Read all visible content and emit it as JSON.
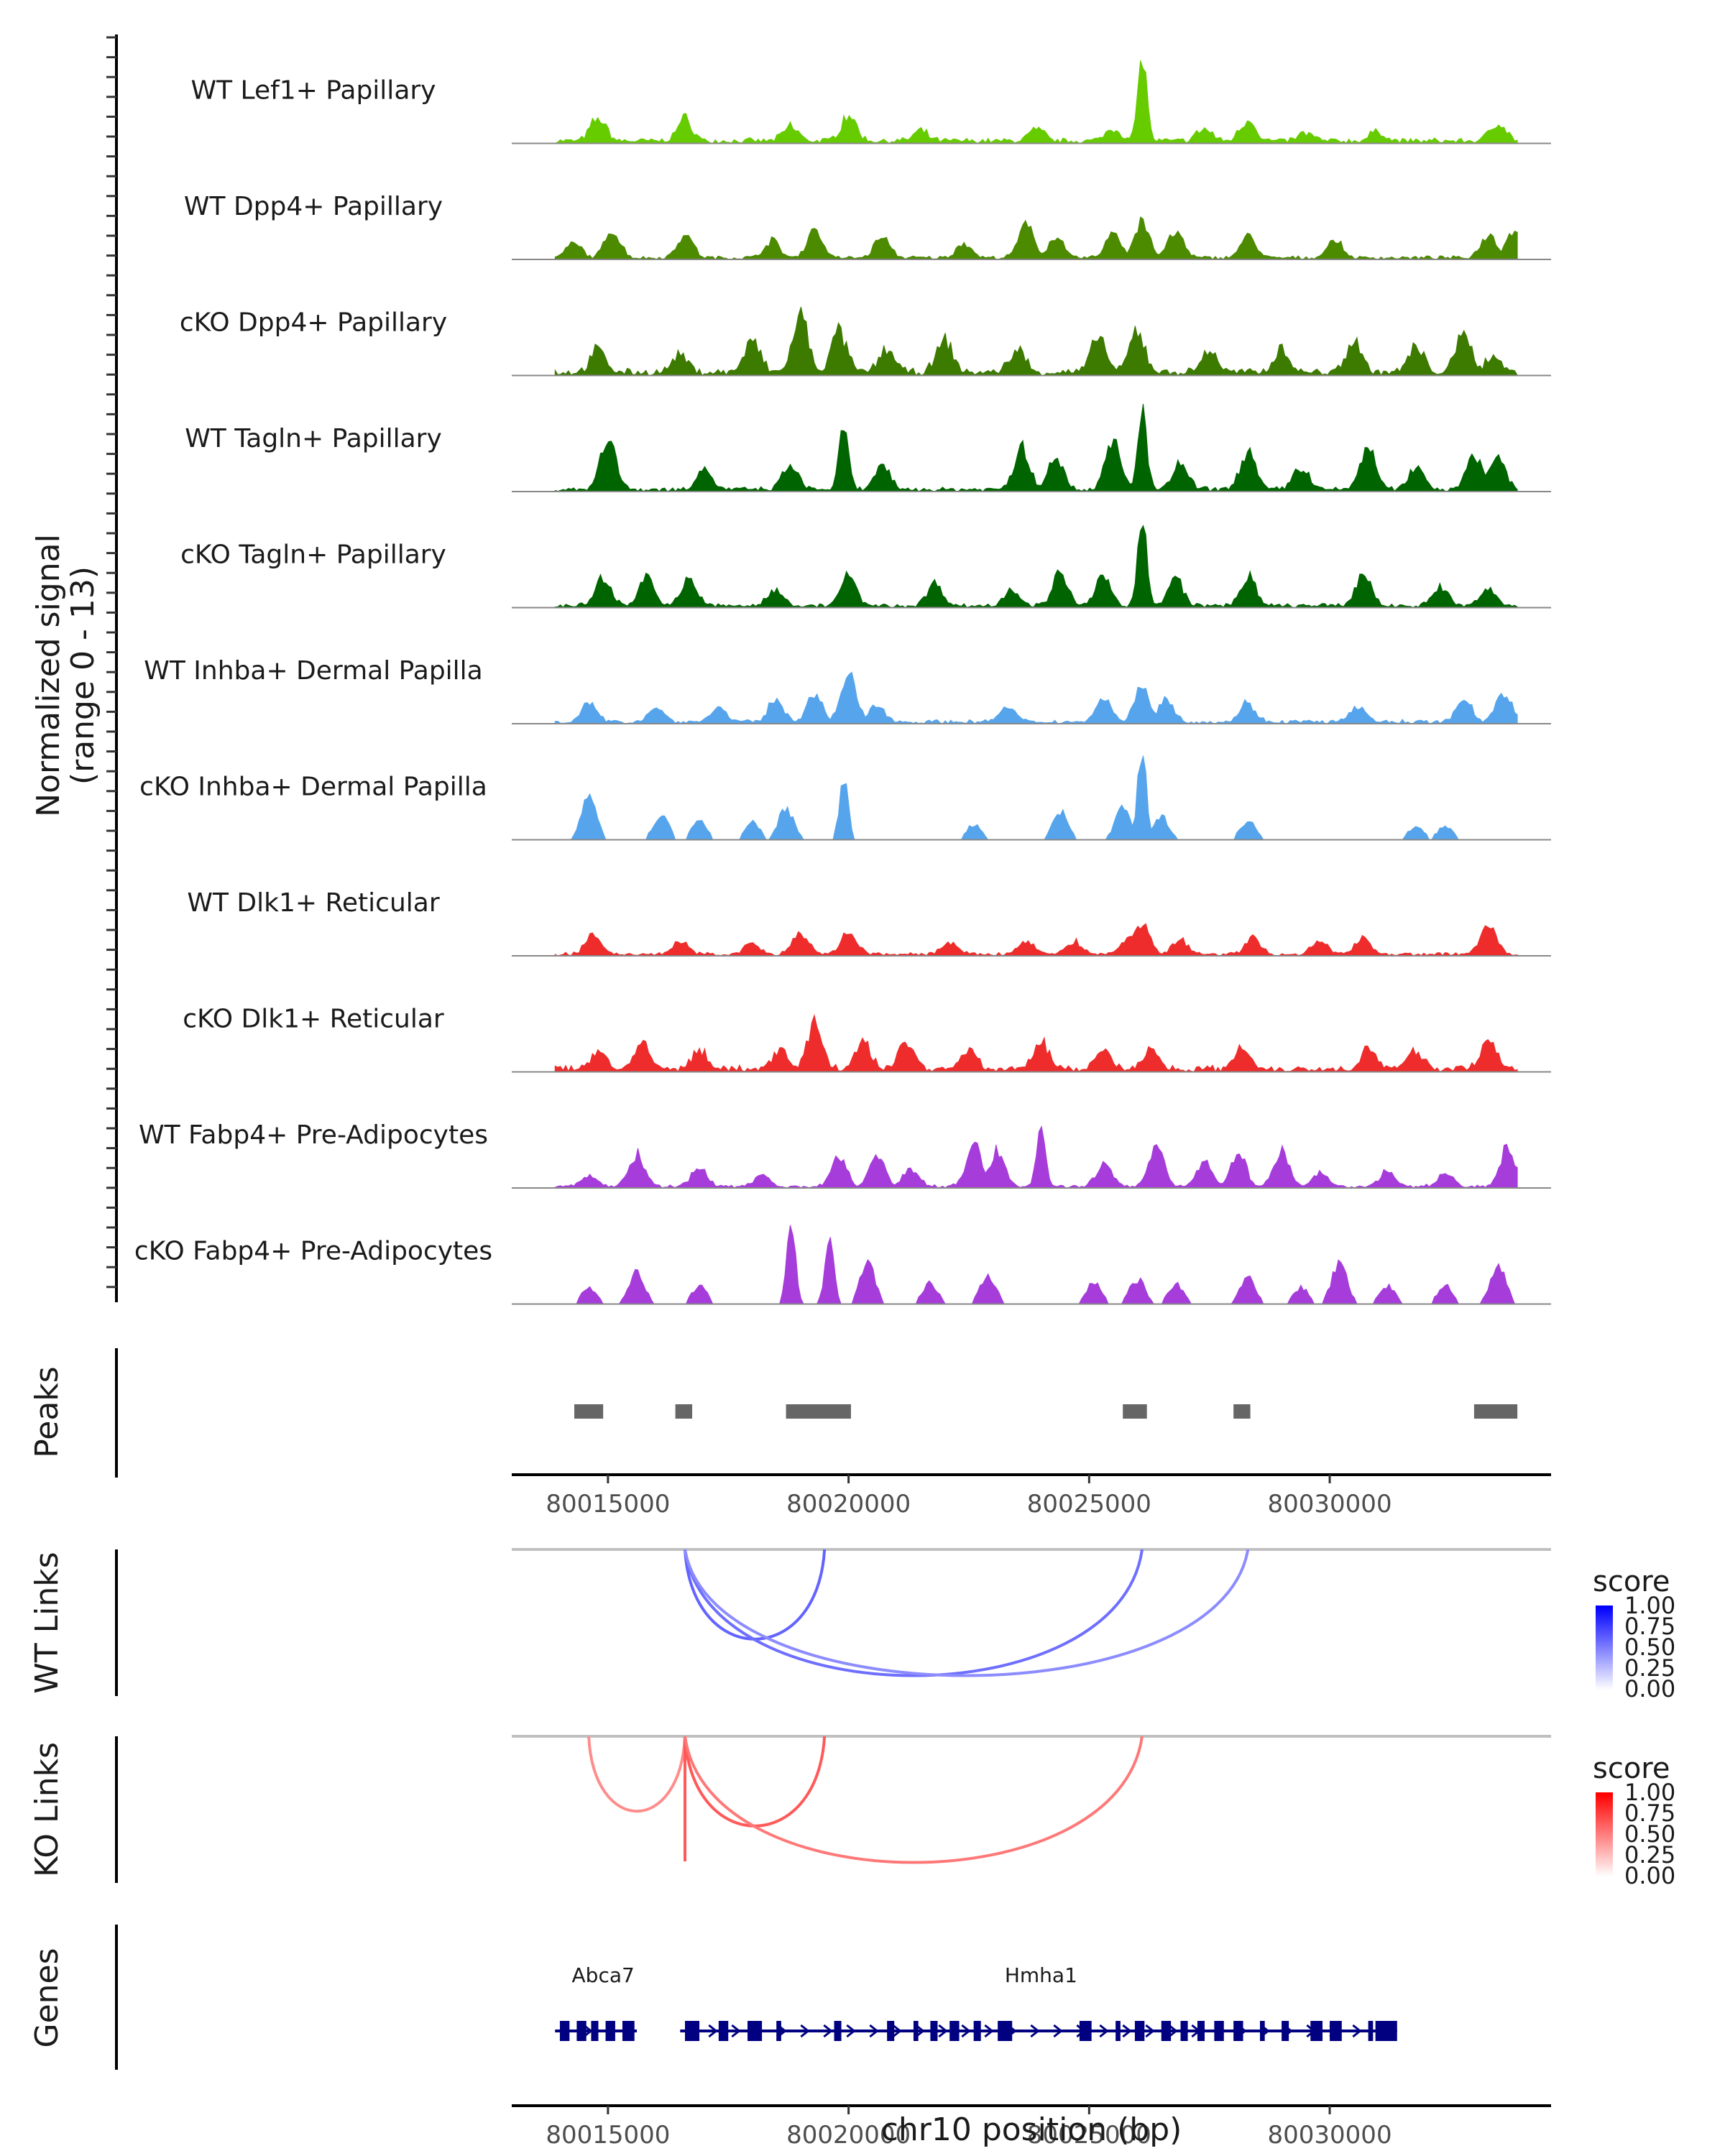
{
  "chart_data": {
    "type": "area",
    "title": "",
    "y_axis_title_line1": "Normalized signal",
    "y_axis_title_line2": "(range 0 - 13)",
    "ylim": [
      0,
      13
    ],
    "xlim": [
      80013000,
      80034600
    ],
    "xlabel": "chr10 position (bp)",
    "x_ticks": [
      80015000,
      80020000,
      80025000,
      80030000
    ],
    "x_tick_labels": [
      "80015000",
      "80020000",
      "80025000",
      "80030000"
    ],
    "coverage_tracks": [
      {
        "name": "WT Lef1+ Papillary",
        "color": "#66CC00",
        "peaks": [
          [
            80014800,
            3.2
          ],
          [
            80016600,
            3.0
          ],
          [
            80018800,
            2.0
          ],
          [
            80020000,
            3.6
          ],
          [
            80021500,
            1.2
          ],
          [
            80023900,
            1.6
          ],
          [
            80025500,
            1.8
          ],
          [
            80026100,
            12.5
          ],
          [
            80027400,
            1.6
          ],
          [
            80028300,
            3.0
          ],
          [
            80029500,
            1.0
          ],
          [
            80031000,
            1.2
          ],
          [
            80033500,
            2.6
          ]
        ],
        "noise": 0.9
      },
      {
        "name": "WT Dpp4+ Papillary",
        "color": "#4C8A00",
        "peaks": [
          [
            80014300,
            2.0
          ],
          [
            80015100,
            3.8
          ],
          [
            80016600,
            3.4
          ],
          [
            80018400,
            2.4
          ],
          [
            80019300,
            4.0
          ],
          [
            80020700,
            3.0
          ],
          [
            80022400,
            2.0
          ],
          [
            80023700,
            4.6
          ],
          [
            80024300,
            2.8
          ],
          [
            80025500,
            3.6
          ],
          [
            80026100,
            5.2
          ],
          [
            80026800,
            3.6
          ],
          [
            80028300,
            3.0
          ],
          [
            80030100,
            2.4
          ],
          [
            80033300,
            3.4
          ],
          [
            80033800,
            3.8
          ]
        ],
        "noise": 0.6
      },
      {
        "name": "cKO Dpp4+ Papillary",
        "color": "#3C7A00",
        "peaks": [
          [
            80014800,
            3.0
          ],
          [
            80016500,
            2.2
          ],
          [
            80018000,
            4.4
          ],
          [
            80019000,
            7.8
          ],
          [
            80019800,
            5.6
          ],
          [
            80020800,
            3.4
          ],
          [
            80022000,
            4.4
          ],
          [
            80023500,
            3.2
          ],
          [
            80025200,
            4.8
          ],
          [
            80026000,
            5.6
          ],
          [
            80027500,
            3.0
          ],
          [
            80029000,
            3.4
          ],
          [
            80030500,
            4.6
          ],
          [
            80031800,
            3.4
          ],
          [
            80032800,
            5.6
          ],
          [
            80033400,
            2.2
          ]
        ],
        "noise": 1.2
      },
      {
        "name": "WT Tagln+ Papillary",
        "color": "#006400",
        "peaks": [
          [
            80015000,
            7.6
          ],
          [
            80017000,
            2.8
          ],
          [
            80018800,
            3.4
          ],
          [
            80019900,
            9.4
          ],
          [
            80020700,
            3.2
          ],
          [
            80023600,
            6.0
          ],
          [
            80024300,
            4.8
          ],
          [
            80025500,
            7.0
          ],
          [
            80026100,
            11.0
          ],
          [
            80026900,
            3.6
          ],
          [
            80028300,
            5.6
          ],
          [
            80029400,
            3.2
          ],
          [
            80030800,
            6.2
          ],
          [
            80031800,
            3.2
          ],
          [
            80033000,
            5.2
          ],
          [
            80033500,
            4.8
          ]
        ],
        "noise": 0.8
      },
      {
        "name": "cKO Tagln+ Papillary",
        "color": "#006400",
        "peaks": [
          [
            80014900,
            4.0
          ],
          [
            80015800,
            4.4
          ],
          [
            80016700,
            3.8
          ],
          [
            80018500,
            2.4
          ],
          [
            80020000,
            4.2
          ],
          [
            80021800,
            3.2
          ],
          [
            80023400,
            2.4
          ],
          [
            80024400,
            4.4
          ],
          [
            80025300,
            4.0
          ],
          [
            80026100,
            13.0
          ],
          [
            80026800,
            3.8
          ],
          [
            80028300,
            4.0
          ],
          [
            80030700,
            4.4
          ],
          [
            80032300,
            2.6
          ],
          [
            80033300,
            2.4
          ]
        ],
        "noise": 0.7
      },
      {
        "name": "WT Inhba+ Dermal Papilla",
        "color": "#56A5EC",
        "peaks": [
          [
            80014600,
            2.4
          ],
          [
            80016000,
            2.0
          ],
          [
            80017300,
            2.0
          ],
          [
            80018500,
            3.2
          ],
          [
            80019300,
            4.0
          ],
          [
            80020000,
            6.4
          ],
          [
            80020600,
            2.6
          ],
          [
            80023300,
            2.0
          ],
          [
            80025300,
            3.4
          ],
          [
            80026100,
            5.0
          ],
          [
            80026600,
            3.2
          ],
          [
            80028300,
            2.6
          ],
          [
            80030600,
            2.0
          ],
          [
            80032800,
            3.0
          ],
          [
            80033600,
            4.2
          ]
        ],
        "noise": 0.7
      },
      {
        "name": "cKO Inhba+ Dermal Papilla",
        "color": "#56A5EC",
        "peaks": [
          [
            80014600,
            6.2
          ],
          [
            80016100,
            3.6
          ],
          [
            80016900,
            2.6
          ],
          [
            80018000,
            2.6
          ],
          [
            80018700,
            4.6
          ],
          [
            80019900,
            8.6
          ],
          [
            80022600,
            2.2
          ],
          [
            80024400,
            4.0
          ],
          [
            80025700,
            4.6
          ],
          [
            80026100,
            12.8
          ],
          [
            80026500,
            3.4
          ],
          [
            80028300,
            2.8
          ],
          [
            80031800,
            2.0
          ],
          [
            80032400,
            2.0
          ]
        ],
        "noise": 0.0
      },
      {
        "name": "WT Dlk1+ Reticular",
        "color": "#EE2C2C",
        "peaks": [
          [
            80014700,
            2.8
          ],
          [
            80016500,
            1.8
          ],
          [
            80018000,
            1.4
          ],
          [
            80019000,
            2.8
          ],
          [
            80020000,
            3.0
          ],
          [
            80022100,
            1.6
          ],
          [
            80023700,
            1.8
          ],
          [
            80024700,
            1.8
          ],
          [
            80025800,
            2.2
          ],
          [
            80026100,
            4.6
          ],
          [
            80026900,
            2.0
          ],
          [
            80028400,
            2.2
          ],
          [
            80029800,
            1.8
          ],
          [
            80030700,
            2.4
          ],
          [
            80033300,
            4.2
          ]
        ],
        "noise": 0.6
      },
      {
        "name": "cKO Dlk1+ Reticular",
        "color": "#EE2C2C",
        "peaks": [
          [
            80014800,
            2.6
          ],
          [
            80015700,
            3.4
          ],
          [
            80016900,
            2.6
          ],
          [
            80018600,
            2.4
          ],
          [
            80019300,
            6.4
          ],
          [
            80020300,
            3.6
          ],
          [
            80021200,
            4.0
          ],
          [
            80022500,
            2.8
          ],
          [
            80024000,
            3.8
          ],
          [
            80025300,
            2.8
          ],
          [
            80026300,
            2.8
          ],
          [
            80028200,
            3.0
          ],
          [
            80030800,
            2.8
          ],
          [
            80031800,
            2.6
          ],
          [
            80033300,
            4.2
          ]
        ],
        "noise": 1.1
      },
      {
        "name": "WT Fabp4+ Pre-Adipocytes",
        "color": "#A63DDB",
        "peaks": [
          [
            80014600,
            1.6
          ],
          [
            80015600,
            4.6
          ],
          [
            80016900,
            2.8
          ],
          [
            80018200,
            1.8
          ],
          [
            80019800,
            4.2
          ],
          [
            80020600,
            4.6
          ],
          [
            80021300,
            2.6
          ],
          [
            80022600,
            6.2
          ],
          [
            80023100,
            5.0
          ],
          [
            80024000,
            8.8
          ],
          [
            80025300,
            3.2
          ],
          [
            80026400,
            6.2
          ],
          [
            80027400,
            3.6
          ],
          [
            80028100,
            4.8
          ],
          [
            80029000,
            5.0
          ],
          [
            80029800,
            2.0
          ],
          [
            80031200,
            2.2
          ],
          [
            80032400,
            1.8
          ],
          [
            80033700,
            5.6
          ]
        ],
        "noise": 0.5
      },
      {
        "name": "cKO Fabp4+ Pre-Adipocytes",
        "color": "#A63DDB",
        "peaks": [
          [
            80014600,
            2.2
          ],
          [
            80015600,
            4.6
          ],
          [
            80016900,
            2.6
          ],
          [
            80018800,
            11.4
          ],
          [
            80019600,
            9.2
          ],
          [
            80020400,
            5.8
          ],
          [
            80021700,
            3.0
          ],
          [
            80022900,
            4.2
          ],
          [
            80025100,
            3.0
          ],
          [
            80026000,
            3.6
          ],
          [
            80026800,
            2.8
          ],
          [
            80028300,
            3.8
          ],
          [
            80029400,
            2.4
          ],
          [
            80030200,
            6.0
          ],
          [
            80031200,
            2.6
          ],
          [
            80032400,
            2.8
          ],
          [
            80033500,
            5.6
          ]
        ],
        "noise": 0.0
      }
    ],
    "peaks_track": {
      "label": "Peaks",
      "color": "#666666",
      "regions": [
        [
          80014300,
          80014900
        ],
        [
          80016400,
          80016750
        ],
        [
          80018700,
          80020050
        ],
        [
          80025700,
          80026200
        ],
        [
          80028000,
          80028350
        ],
        [
          80033000,
          80033900
        ]
      ]
    },
    "link_tracks": [
      {
        "label": "WT Links",
        "colorbar_title": "score",
        "low_color": "#FFFFFF",
        "high_color": "#0000FF",
        "anchor": 80016600,
        "links": [
          [
            80016600,
            80019500,
            0.45
          ],
          [
            80016600,
            80026100,
            0.4
          ],
          [
            80016600,
            80028300,
            0.25
          ]
        ],
        "colorbar_ticks": [
          "1.00",
          "0.75",
          "0.50",
          "0.25",
          "0.00"
        ]
      },
      {
        "label": "KO Links",
        "colorbar_title": "score",
        "low_color": "#FFFFFF",
        "high_color": "#FF0000",
        "anchor": 80016600,
        "links": [
          [
            80014600,
            80016600,
            0.25
          ],
          [
            80016600,
            80016610,
            0.5
          ],
          [
            80016600,
            80019500,
            0.5
          ],
          [
            80016600,
            80026100,
            0.35
          ]
        ],
        "colorbar_ticks": [
          "1.00",
          "0.75",
          "0.50",
          "0.25",
          "0.00"
        ]
      }
    ],
    "genes_track": {
      "label": "Genes",
      "color": "#000080",
      "genes": [
        {
          "name": "Abca7",
          "start": 80013900,
          "end": 80015600,
          "label_at": 80014900,
          "exons": [
            [
              80014000,
              80014200
            ],
            [
              80014350,
              80014550
            ],
            [
              80014650,
              80014800
            ],
            [
              80014950,
              80015150
            ],
            [
              80015300,
              80015550
            ]
          ]
        },
        {
          "name": "Hmha1",
          "start": 80016500,
          "end": 80031400,
          "label_at": 80024000,
          "exons": [
            [
              80016600,
              80016900
            ],
            [
              80017300,
              80017500
            ],
            [
              80017900,
              80018200
            ],
            [
              80018500,
              80018600
            ],
            [
              80019700,
              80019850
            ],
            [
              80020800,
              80020950
            ],
            [
              80021350,
              80021450
            ],
            [
              80021700,
              80021850
            ],
            [
              80022100,
              80022300
            ],
            [
              80022600,
              80022750
            ],
            [
              80023100,
              80023400
            ],
            [
              80024800,
              80025050
            ],
            [
              80025550,
              80025650
            ],
            [
              80025950,
              80026150
            ],
            [
              80026500,
              80026700
            ],
            [
              80026900,
              80027050
            ],
            [
              80027250,
              80027400
            ],
            [
              80027600,
              80027800
            ],
            [
              80028000,
              80028200
            ],
            [
              80028550,
              80028650
            ],
            [
              80029000,
              80029150
            ],
            [
              80029600,
              80029850
            ],
            [
              80030000,
              80030250
            ],
            [
              80030800,
              80030900
            ],
            [
              80030950,
              80031400
            ]
          ]
        }
      ]
    }
  }
}
